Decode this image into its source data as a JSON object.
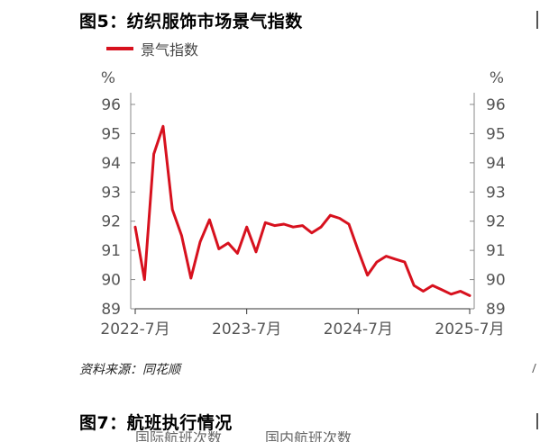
{
  "figure5": {
    "title": "图5：纺织服饰市场景气指数",
    "source": "资料来源：同花顺"
  },
  "figure7": {
    "title": "图7：航班执行情况",
    "legend_cut_text": "国际航班次数　　　国内航班次数"
  },
  "chart_data": {
    "type": "line",
    "title": "图5：纺织服饰市场景气指数",
    "unit_left": "%",
    "unit_right": "%",
    "ylim": [
      89,
      96
    ],
    "y_ticks": [
      96,
      95,
      94,
      93,
      92,
      91,
      90,
      89
    ],
    "x_ticks": [
      "2022-7月",
      "2023-7月",
      "2024-7月",
      "2025-7月"
    ],
    "grid": false,
    "legend_position": "top-left",
    "series": [
      {
        "name": "景气指数",
        "color": "#d7111e",
        "points": [
          [
            "2022-7",
            91.8
          ],
          [
            "2022-8",
            90.0
          ],
          [
            "2022-9",
            94.3
          ],
          [
            "2022-10",
            95.25
          ],
          [
            "2022-11",
            92.4
          ],
          [
            "2022-12",
            91.5
          ],
          [
            "2023-1",
            90.05
          ],
          [
            "2023-2",
            91.3
          ],
          [
            "2023-3",
            92.05
          ],
          [
            "2023-4",
            91.05
          ],
          [
            "2023-5",
            91.25
          ],
          [
            "2023-6",
            90.9
          ],
          [
            "2023-7",
            91.8
          ],
          [
            "2023-8",
            90.95
          ],
          [
            "2023-9",
            91.95
          ],
          [
            "2023-10",
            91.85
          ],
          [
            "2023-11",
            91.9
          ],
          [
            "2023-12",
            91.8
          ],
          [
            "2024-1",
            91.85
          ],
          [
            "2024-2",
            91.6
          ],
          [
            "2024-3",
            91.8
          ],
          [
            "2024-4",
            92.2
          ],
          [
            "2024-5",
            92.1
          ],
          [
            "2024-6",
            91.9
          ],
          [
            "2024-7",
            91.0
          ],
          [
            "2024-8",
            90.15
          ],
          [
            "2024-9",
            90.6
          ],
          [
            "2024-10",
            90.8
          ],
          [
            "2024-11",
            90.7
          ],
          [
            "2024-12",
            90.6
          ],
          [
            "2025-1",
            89.8
          ],
          [
            "2025-2",
            89.6
          ],
          [
            "2025-3",
            89.8
          ],
          [
            "2025-4",
            89.65
          ],
          [
            "2025-5",
            89.5
          ],
          [
            "2025-6",
            89.6
          ],
          [
            "2025-7",
            89.45
          ]
        ]
      }
    ]
  }
}
